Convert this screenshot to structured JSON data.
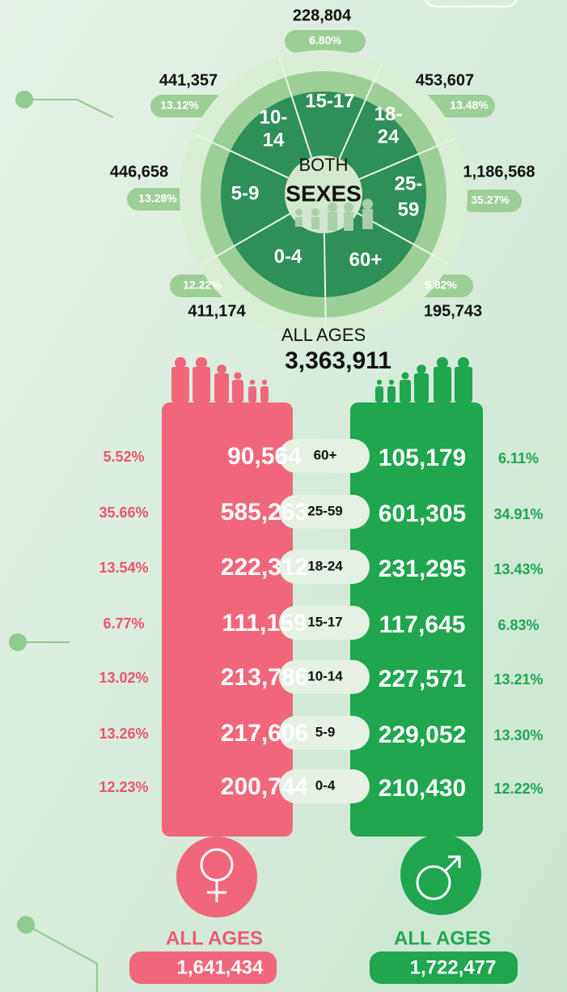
{
  "wheel": {
    "center_top": "BOTH",
    "center_bottom": "SEXES",
    "segments": [
      {
        "label": [
          "15-17"
        ],
        "count": "228,804",
        "percent": "6.80%"
      },
      {
        "label": [
          "18-",
          "24"
        ],
        "count": "453,607",
        "percent": "13.48%"
      },
      {
        "label": [
          "25-",
          "59"
        ],
        "count": "1,186,568",
        "percent": "35.27%"
      },
      {
        "label": [
          "60+"
        ],
        "count": "195,743",
        "percent": "5.82%"
      },
      {
        "label": [
          "0-4"
        ],
        "count": "411,174",
        "percent": "12.22%"
      },
      {
        "label": [
          "5-9"
        ],
        "count": "446,658",
        "percent": "13.28%"
      },
      {
        "label": [
          "10-",
          "14"
        ],
        "count": "441,357",
        "percent": "13.12%"
      }
    ]
  },
  "all_ages": {
    "label": "ALL AGES",
    "total": "3,363,911"
  },
  "rows": [
    {
      "age": "60+",
      "female": "90,564",
      "female_pct": "5.52%",
      "male": "105,179",
      "male_pct": "6.11%"
    },
    {
      "age": "25-59",
      "female": "585,263",
      "female_pct": "35.66%",
      "male": "601,305",
      "male_pct": "34.91%"
    },
    {
      "age": "18-24",
      "female": "222,312",
      "female_pct": "13.54%",
      "male": "231,295",
      "male_pct": "13.43%"
    },
    {
      "age": "15-17",
      "female": "111,159",
      "female_pct": "6.77%",
      "male": "117,645",
      "male_pct": "6.83%"
    },
    {
      "age": "10-14",
      "female": "213,786",
      "female_pct": "13.02%",
      "male": "227,571",
      "male_pct": "13.21%"
    },
    {
      "age": "5-9",
      "female": "217,606",
      "female_pct": "13.26%",
      "male": "229,052",
      "male_pct": "13.30%"
    },
    {
      "age": "0-4",
      "female": "200,744",
      "female_pct": "12.23%",
      "male": "210,430",
      "male_pct": "12.22%"
    }
  ],
  "female_total": {
    "label": "ALL AGES",
    "value": "1,641,434"
  },
  "male_total": {
    "label": "ALL AGES",
    "value": "1,722,477"
  }
}
